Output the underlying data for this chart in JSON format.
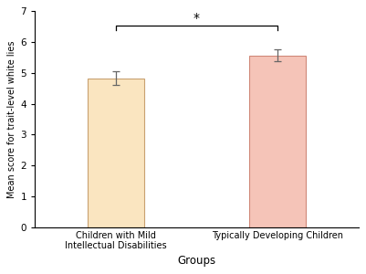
{
  "categories": [
    "Children with Mild\nIntellectual Disabilities",
    "Typically Developing Children"
  ],
  "values": [
    4.83,
    5.57
  ],
  "errors": [
    0.23,
    0.2
  ],
  "bar_colors": [
    "#FAE5C0",
    "#F5C4B8"
  ],
  "bar_edge_colors": [
    "#C8A070",
    "#D08878"
  ],
  "ylabel": "Mean score for trait-level white lies",
  "xlabel": "Groups",
  "ylim": [
    0,
    7
  ],
  "yticks": [
    0,
    1,
    2,
    3,
    4,
    5,
    6,
    7
  ],
  "significance_label": "*",
  "bar_width": 0.35,
  "background_color": "#ffffff",
  "figsize": [
    4.01,
    3.0
  ],
  "dpi": 100
}
